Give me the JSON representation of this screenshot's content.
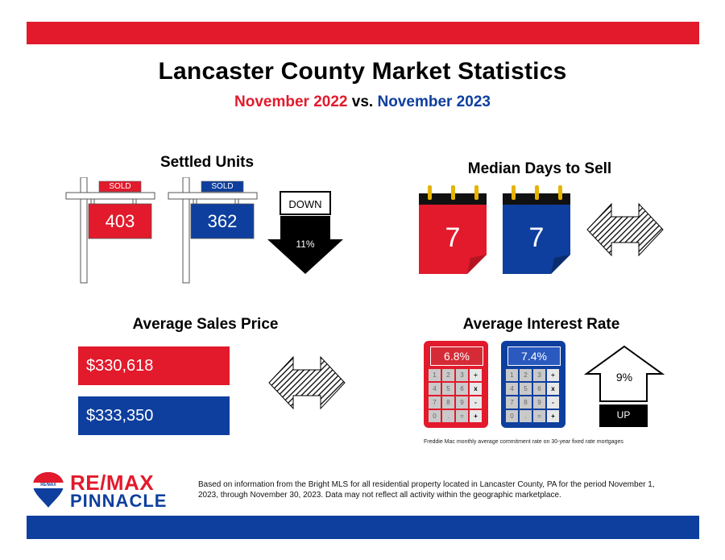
{
  "header": {
    "title": "Lancaster County Market Statistics",
    "subtitle_2022": "November 2022",
    "subtitle_vs": "vs.",
    "subtitle_2023": "November 2023"
  },
  "settled_units": {
    "title": "Settled Units",
    "sign_2022": {
      "tag": "SOLD",
      "value": "403"
    },
    "sign_2023": {
      "tag": "SOLD",
      "value": "362"
    },
    "change_label": "DOWN",
    "change_pct": "11%"
  },
  "median_days": {
    "title": "Median Days to Sell",
    "value_2022": "7",
    "value_2023": "7"
  },
  "avg_price": {
    "title": "Average Sales Price",
    "value_2022": "$330,618",
    "value_2023": "$333,350"
  },
  "interest_rate": {
    "title": "Average Interest Rate",
    "value_2022": "6.8%",
    "value_2023": "7.4%",
    "change_pct": "9%",
    "change_label": "UP",
    "keys": [
      "1",
      "2",
      "3",
      "÷",
      "4",
      "5",
      "6",
      "x",
      "7",
      "8",
      "9",
      "-",
      "0",
      ".",
      "=",
      "+"
    ],
    "footnote": "Freddie Mac monthly average commitment rate on 30-year fixed rate mortgages"
  },
  "footer": {
    "logo_badge": "RE/MAX",
    "logo_main": "RE/MAX",
    "logo_sub": "PINNACLE",
    "disclaimer": "Based on information from the Bright MLS for all residential property located in Lancaster County, PA for the period November 1, 2023, through November 30, 2023.  Data may not reflect all activity within the geographic marketplace."
  },
  "colors": {
    "red": "#e21a2c",
    "blue": "#0e3f9e",
    "calc_red_screen": "#c8202b",
    "calc_blue_screen": "#1e4fae"
  }
}
